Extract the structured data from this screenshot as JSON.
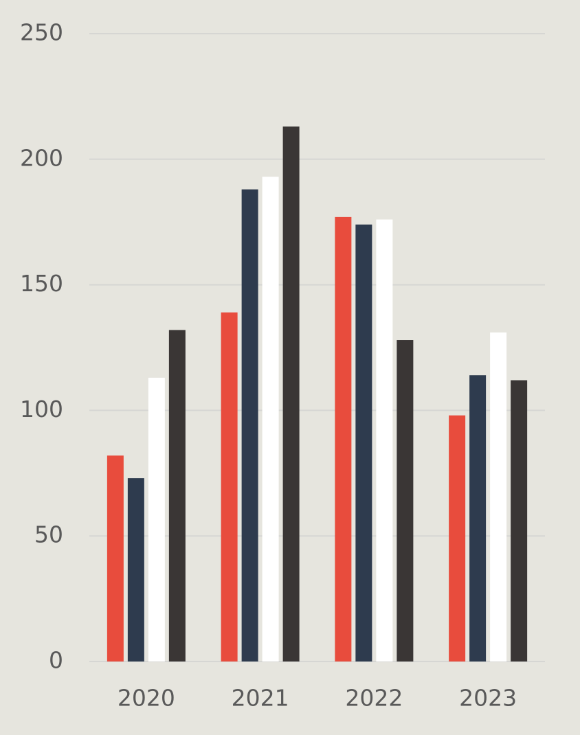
{
  "chart_data": {
    "type": "bar",
    "categories": [
      "2020",
      "2021",
      "2022",
      "2023"
    ],
    "series": [
      {
        "color": "#e84c3d",
        "values": [
          82,
          139,
          177,
          98
        ]
      },
      {
        "color": "#2e3b4e",
        "values": [
          73,
          188,
          174,
          114
        ]
      },
      {
        "color": "#ffffff",
        "values": [
          113,
          193,
          176,
          131
        ]
      },
      {
        "color": "#3a3635",
        "values": [
          132,
          213,
          128,
          112
        ]
      }
    ],
    "ylim": [
      0,
      250
    ],
    "yticks": [
      0,
      50,
      100,
      150,
      200,
      250
    ],
    "grid": true
  }
}
